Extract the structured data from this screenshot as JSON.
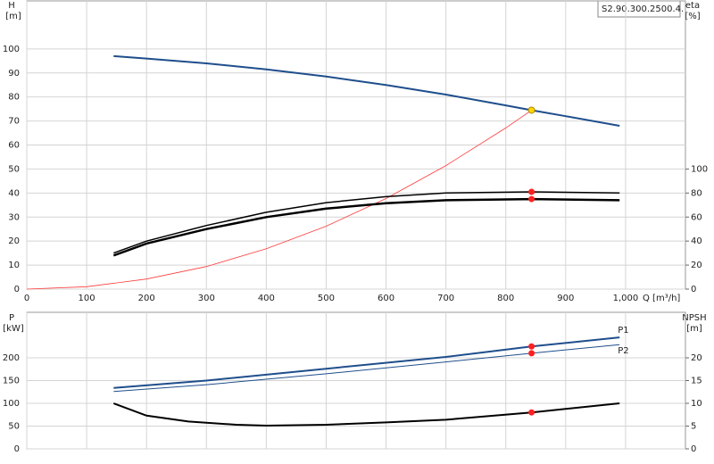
{
  "chart_data": [
    {
      "type": "line",
      "ylabel": "H",
      "yunit": "[m]",
      "y2label": "eta",
      "y2unit": "[%]",
      "xlabel": "Q [m³/h]",
      "model": "S2.90.300.2500.4.",
      "xlim": [
        0,
        1100
      ],
      "ylim": [
        0,
        120
      ],
      "y2lim": [
        0,
        240
      ],
      "grid": true,
      "xticks": [
        0,
        100,
        200,
        300,
        400,
        500,
        600,
        700,
        800,
        900,
        {
          "value": 1000,
          "label": "1,000"
        }
      ],
      "yticks": [
        0,
        10,
        20,
        30,
        40,
        50,
        60,
        70,
        80,
        90,
        100
      ],
      "y2ticks": [
        0,
        20,
        40,
        60,
        80,
        100
      ],
      "series": [
        {
          "color": "#1f4e8c",
          "width": 2,
          "x": [
            145,
            200,
            300,
            400,
            500,
            600,
            700,
            800,
            843,
            900,
            990
          ],
          "values": [
            97,
            96,
            94,
            91.5,
            88.5,
            85,
            81,
            76.5,
            74.5,
            72,
            68
          ]
        },
        {
          "color": "#ff3b3b",
          "width": 0.8,
          "x": [
            0,
            100,
            200,
            300,
            400,
            500,
            600,
            700,
            800,
            843
          ],
          "values": [
            0,
            1,
            4.2,
            9.4,
            16.8,
            26.2,
            37.7,
            51.4,
            67.1,
            74.5
          ]
        },
        {
          "color": "#000000",
          "width": 1.5,
          "axis": "y2",
          "x": [
            145,
            200,
            300,
            400,
            500,
            600,
            700,
            843,
            990
          ],
          "values": [
            30,
            40,
            53,
            64,
            72,
            77,
            80,
            81,
            80
          ]
        },
        {
          "color": "#000000",
          "width": 2.5,
          "axis": "y2",
          "x": [
            145,
            200,
            300,
            400,
            500,
            600,
            700,
            843,
            990
          ],
          "values": [
            28,
            38,
            50,
            60,
            67,
            71.5,
            74,
            75,
            74
          ]
        },
        {
          "color": "#ff2020",
          "marker": true,
          "axis": "y2",
          "x": [
            843
          ],
          "values": [
            81
          ]
        },
        {
          "color": "#ff2020",
          "marker": true,
          "axis": "y2",
          "x": [
            843
          ],
          "values": [
            75
          ]
        },
        {
          "color": "#ffd700",
          "marker": true,
          "x": [
            843
          ],
          "values": [
            74.5
          ]
        }
      ]
    },
    {
      "type": "line",
      "ylabel": "P",
      "yunit": "[kW]",
      "y2label": "NPSH",
      "y2unit": "[m]",
      "xlim": [
        0,
        1100
      ],
      "ylim": [
        0,
        300
      ],
      "y2lim": [
        0,
        30
      ],
      "grid": true,
      "yticks": [
        0,
        50,
        100,
        150,
        200
      ],
      "y2ticks": [
        0,
        5,
        10,
        15,
        20
      ],
      "series": [
        {
          "name": "P1",
          "color": "#1f4e8c",
          "width": 2,
          "x": [
            145,
            300,
            500,
            700,
            843,
            990
          ],
          "values": [
            134,
            150,
            176,
            202,
            225,
            245
          ]
        },
        {
          "name": "P2",
          "color": "#1f4e8c",
          "width": 1,
          "x": [
            145,
            300,
            500,
            700,
            843,
            990
          ],
          "values": [
            126,
            141,
            165,
            191,
            210,
            229
          ]
        },
        {
          "color": "#000000",
          "width": 2,
          "axis": "y2",
          "x": [
            145,
            200,
            270,
            350,
            400,
            500,
            600,
            700,
            843,
            990
          ],
          "values": [
            10,
            7.3,
            6,
            5.3,
            5.1,
            5.3,
            5.8,
            6.4,
            8,
            10
          ]
        },
        {
          "color": "#ff2020",
          "marker": true,
          "x": [
            843
          ],
          "values": [
            225
          ]
        },
        {
          "color": "#ff2020",
          "marker": true,
          "x": [
            843
          ],
          "values": [
            210
          ]
        },
        {
          "color": "#ff2020",
          "marker": true,
          "axis": "y2",
          "x": [
            843
          ],
          "values": [
            8
          ]
        }
      ]
    }
  ]
}
